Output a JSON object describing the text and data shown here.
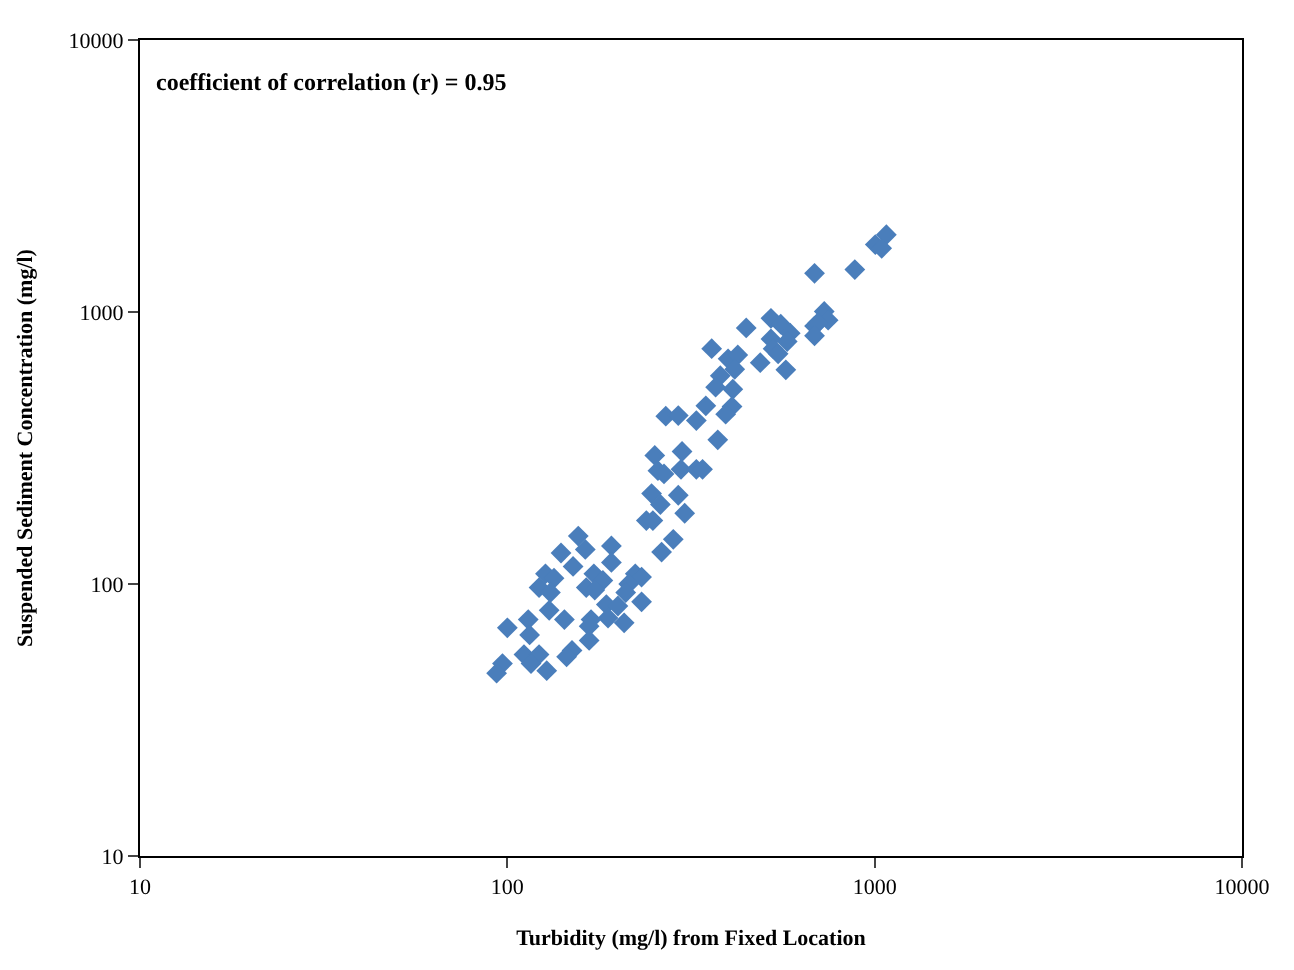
{
  "chart_data": {
    "type": "scatter",
    "xlabel": "Turbidity (mg/l) from Fixed Location",
    "ylabel": "Suspended Sediment Concentration (mg/l)",
    "annotations": [
      "coefficient of correlation (r) = 0.95"
    ],
    "log": "xy",
    "legend": false,
    "marker": "diamond",
    "xlim": [
      10,
      10000
    ],
    "ylim": [
      10,
      10000
    ],
    "xticks": [
      10,
      100,
      1000,
      10000
    ],
    "yticks": [
      10,
      100,
      1000,
      10000
    ],
    "series": [
      {
        "color": "#4a7ebb",
        "x": [
          1076,
          1004,
          1045,
          883,
          686,
          447,
          522,
          555,
          589,
          578,
          522,
          529,
          546,
          686,
          729,
          747,
          700,
          686,
          360,
          399,
          424,
          416,
          380,
          488,
          573,
          369,
          411,
          409,
          393,
          347,
          327,
          270,
          292,
          374,
          252,
          299,
          257,
          267,
          297,
          327,
          340,
          247,
          292,
          261,
          304,
          239,
          249,
          283,
          263,
          156,
          163,
          140,
          151,
          192,
          192,
          127,
          134,
          122,
          131,
          172,
          182,
          164,
          173,
          223,
          232,
          214,
          210,
          232,
          186,
          200,
          130,
          143,
          188,
          208,
          169,
          167,
          100,
          114,
          115,
          167,
          150,
          145,
          111,
          122,
          116,
          128,
          97,
          93.5
        ],
        "values": [
          1923,
          1770,
          1714,
          1432,
          1387,
          874,
          948,
          902,
          836,
          779,
          796,
          733,
          702,
          888,
          1005,
          933,
          911,
          818,
          733,
          673,
          695,
          616,
          583,
          651,
          613,
          529,
          520,
          449,
          421,
          452,
          399,
          414,
          416,
          339,
          297,
          307,
          261,
          254,
          264,
          264,
          264,
          215,
          212,
          196,
          182,
          171,
          171,
          146,
          131,
          150,
          134,
          130,
          116,
          138,
          120,
          109,
          105,
          97,
          93,
          109,
          103,
          97,
          95,
          109,
          106,
          100,
          93,
          86,
          84,
          83,
          80,
          74,
          75,
          72,
          74,
          70,
          69,
          74,
          65,
          62,
          57,
          54,
          55,
          55,
          51,
          48,
          51,
          47
        ]
      }
    ]
  }
}
